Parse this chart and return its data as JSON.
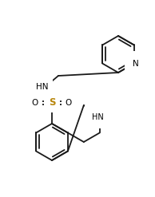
{
  "bg_color": "#ffffff",
  "line_color": "#1a1a1a",
  "atom_colors": {
    "N": "#000000",
    "S": "#b8860b",
    "O": "#000000",
    "C": "#000000"
  },
  "figsize": [
    1.94,
    2.47
  ],
  "dpi": 100,
  "lw": 1.3
}
